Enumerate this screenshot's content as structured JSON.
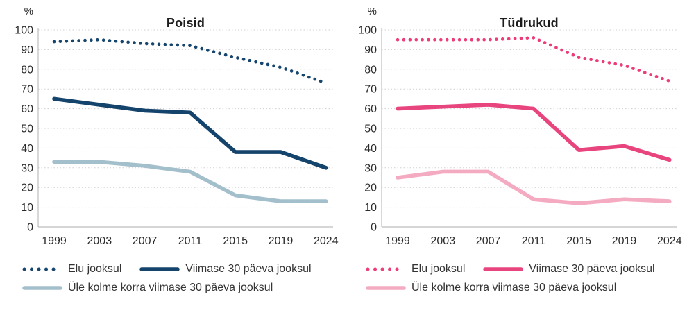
{
  "chart_data": [
    {
      "type": "line",
      "title": "Poisid",
      "ylabel": "%",
      "ylim": [
        0,
        100
      ],
      "yticks": [
        100,
        90,
        80,
        70,
        60,
        50,
        40,
        30,
        20,
        10,
        0
      ],
      "categories": [
        "1999",
        "2003",
        "2007",
        "2011",
        "2015",
        "2019",
        "2024"
      ],
      "grid": "horizontal-dotted",
      "legend_position": "bottom",
      "series": [
        {
          "name": "Elu jooksul",
          "style": "dotted",
          "color": "#16456d",
          "values": [
            94,
            95,
            93,
            92,
            86,
            81,
            73
          ]
        },
        {
          "name": "Viimase 30 päeva jooksul",
          "style": "solid",
          "color": "#14436b",
          "values": [
            65,
            62,
            59,
            58,
            38,
            38,
            30
          ]
        },
        {
          "name": "Üle kolme korra viimase 30 päeva jooksul",
          "style": "solid",
          "color": "#a3bfcc",
          "values": [
            33,
            33,
            31,
            28,
            16,
            13,
            13
          ]
        }
      ]
    },
    {
      "type": "line",
      "title": "Tüdrukud",
      "ylabel": "%",
      "ylim": [
        0,
        100
      ],
      "yticks": [
        100,
        90,
        80,
        70,
        60,
        50,
        40,
        30,
        20,
        10,
        0
      ],
      "categories": [
        "1999",
        "2003",
        "2007",
        "2011",
        "2015",
        "2019",
        "2024"
      ],
      "grid": "horizontal-dotted",
      "legend_position": "bottom",
      "series": [
        {
          "name": "Elu jooksul",
          "style": "dotted",
          "color": "#ec3d79",
          "values": [
            95,
            95,
            95,
            96,
            86,
            82,
            74
          ]
        },
        {
          "name": "Viimase 30 päeva jooksul",
          "style": "solid",
          "color": "#e8457e",
          "values": [
            60,
            61,
            62,
            60,
            39,
            41,
            34
          ]
        },
        {
          "name": "Üle kolme korra viimase 30 päeva jooksul",
          "style": "solid",
          "color": "#f4abc1",
          "values": [
            25,
            28,
            28,
            14,
            12,
            14,
            13
          ]
        }
      ]
    }
  ]
}
